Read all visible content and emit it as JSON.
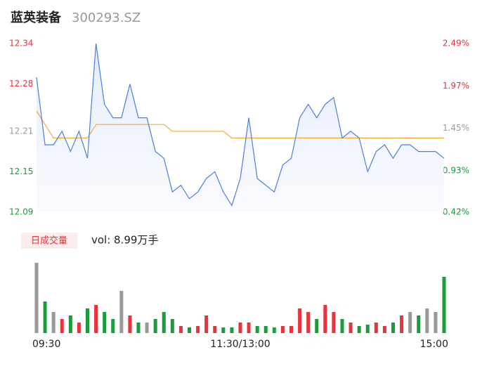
{
  "header": {
    "name": "蓝英装备",
    "code": "300293.SZ"
  },
  "chart_data": {
    "type": "line",
    "categories": [
      "09:30",
      null,
      null,
      null,
      null,
      null,
      null,
      null,
      null,
      null,
      null,
      null,
      null,
      null,
      null,
      null,
      null,
      null,
      null,
      null,
      null,
      null,
      null,
      null,
      "11:30/13:00",
      null,
      null,
      null,
      null,
      null,
      null,
      null,
      null,
      null,
      null,
      null,
      null,
      null,
      null,
      null,
      null,
      null,
      null,
      null,
      null,
      null,
      null,
      null,
      "15:00"
    ],
    "series": [
      {
        "name": "price",
        "color": "#4a7fe0",
        "values": [
          12.29,
          12.19,
          12.19,
          12.21,
          12.18,
          12.21,
          12.17,
          12.34,
          12.25,
          12.23,
          12.23,
          12.28,
          12.23,
          12.23,
          12.18,
          12.17,
          12.12,
          12.13,
          12.11,
          12.12,
          12.14,
          12.15,
          12.12,
          12.1,
          12.14,
          12.23,
          12.14,
          12.13,
          12.12,
          12.16,
          12.17,
          12.23,
          12.25,
          12.23,
          12.25,
          12.26,
          12.2,
          12.21,
          12.2,
          12.15,
          12.18,
          12.19,
          12.17,
          12.19,
          12.19,
          12.18,
          12.18,
          12.18,
          12.17
        ]
      },
      {
        "name": "average",
        "color": "#f2a93b",
        "values": [
          12.24,
          12.22,
          12.2,
          12.2,
          12.2,
          12.2,
          12.2,
          12.22,
          12.22,
          12.22,
          12.22,
          12.22,
          12.22,
          12.22,
          12.22,
          12.22,
          12.21,
          12.21,
          12.21,
          12.21,
          12.21,
          12.21,
          12.21,
          12.2,
          12.2,
          12.2,
          12.2,
          12.2,
          12.2,
          12.2,
          12.2,
          12.2,
          12.2,
          12.2,
          12.2,
          12.2,
          12.2,
          12.2,
          12.2,
          12.2,
          12.2,
          12.2,
          12.2,
          12.2,
          12.2,
          12.2,
          12.2,
          12.2,
          12.2
        ]
      }
    ],
    "ylim": [
      12.09,
      12.34
    ],
    "yticks": [
      12.34,
      12.28,
      12.21,
      12.15,
      12.09
    ],
    "y2lim": [
      0.42,
      2.49
    ],
    "y2ticks": [
      {
        "value": 2.49,
        "label": "2.49%"
      },
      {
        "value": 1.97,
        "label": "1.97%"
      },
      {
        "value": 1.45,
        "label": "1.45%"
      },
      {
        "value": 0.93,
        "label": "0.93%"
      },
      {
        "value": 0.42,
        "label": "0.42%"
      }
    ],
    "up_color": "#e8323c",
    "down_color": "#1a9c3b",
    "flat_color": "#999999",
    "volume_title": "日成交量",
    "volume_text": "vol: 8.99万手",
    "volumes": [
      100,
      45,
      30,
      20,
      25,
      15,
      35,
      40,
      30,
      20,
      60,
      25,
      15,
      15,
      20,
      30,
      20,
      10,
      8,
      10,
      25,
      10,
      8,
      8,
      15,
      15,
      10,
      10,
      8,
      10,
      10,
      35,
      30,
      20,
      40,
      30,
      20,
      15,
      10,
      12,
      15,
      10,
      15,
      25,
      30,
      25,
      35,
      30,
      80
    ]
  }
}
